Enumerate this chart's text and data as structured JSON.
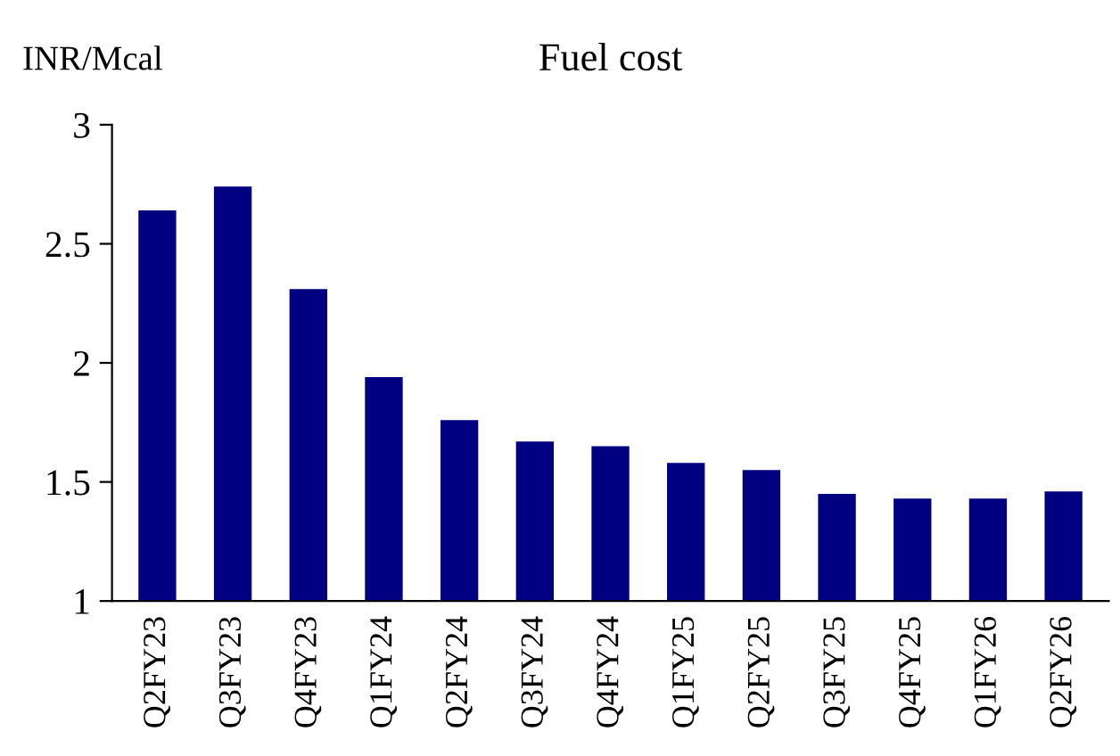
{
  "chart_data": {
    "type": "bar",
    "title": "Fuel cost",
    "ylabel": "INR/Mcal",
    "categories": [
      "Q2FY23",
      "Q3FY23",
      "Q4FY23",
      "Q1FY24",
      "Q2FY24",
      "Q3FY24",
      "Q4FY24",
      "Q1FY25",
      "Q2FY25",
      "Q3FY25",
      "Q4FY25",
      "Q1FY26",
      "Q2FY26"
    ],
    "values": [
      2.64,
      2.74,
      2.31,
      1.94,
      1.76,
      1.67,
      1.65,
      1.58,
      1.55,
      1.45,
      1.43,
      1.43,
      1.46
    ],
    "color": "#000080",
    "ylim": [
      1,
      3
    ],
    "yticks": [
      1,
      1.5,
      2,
      2.5,
      3
    ],
    "grid": false,
    "legend": false
  }
}
